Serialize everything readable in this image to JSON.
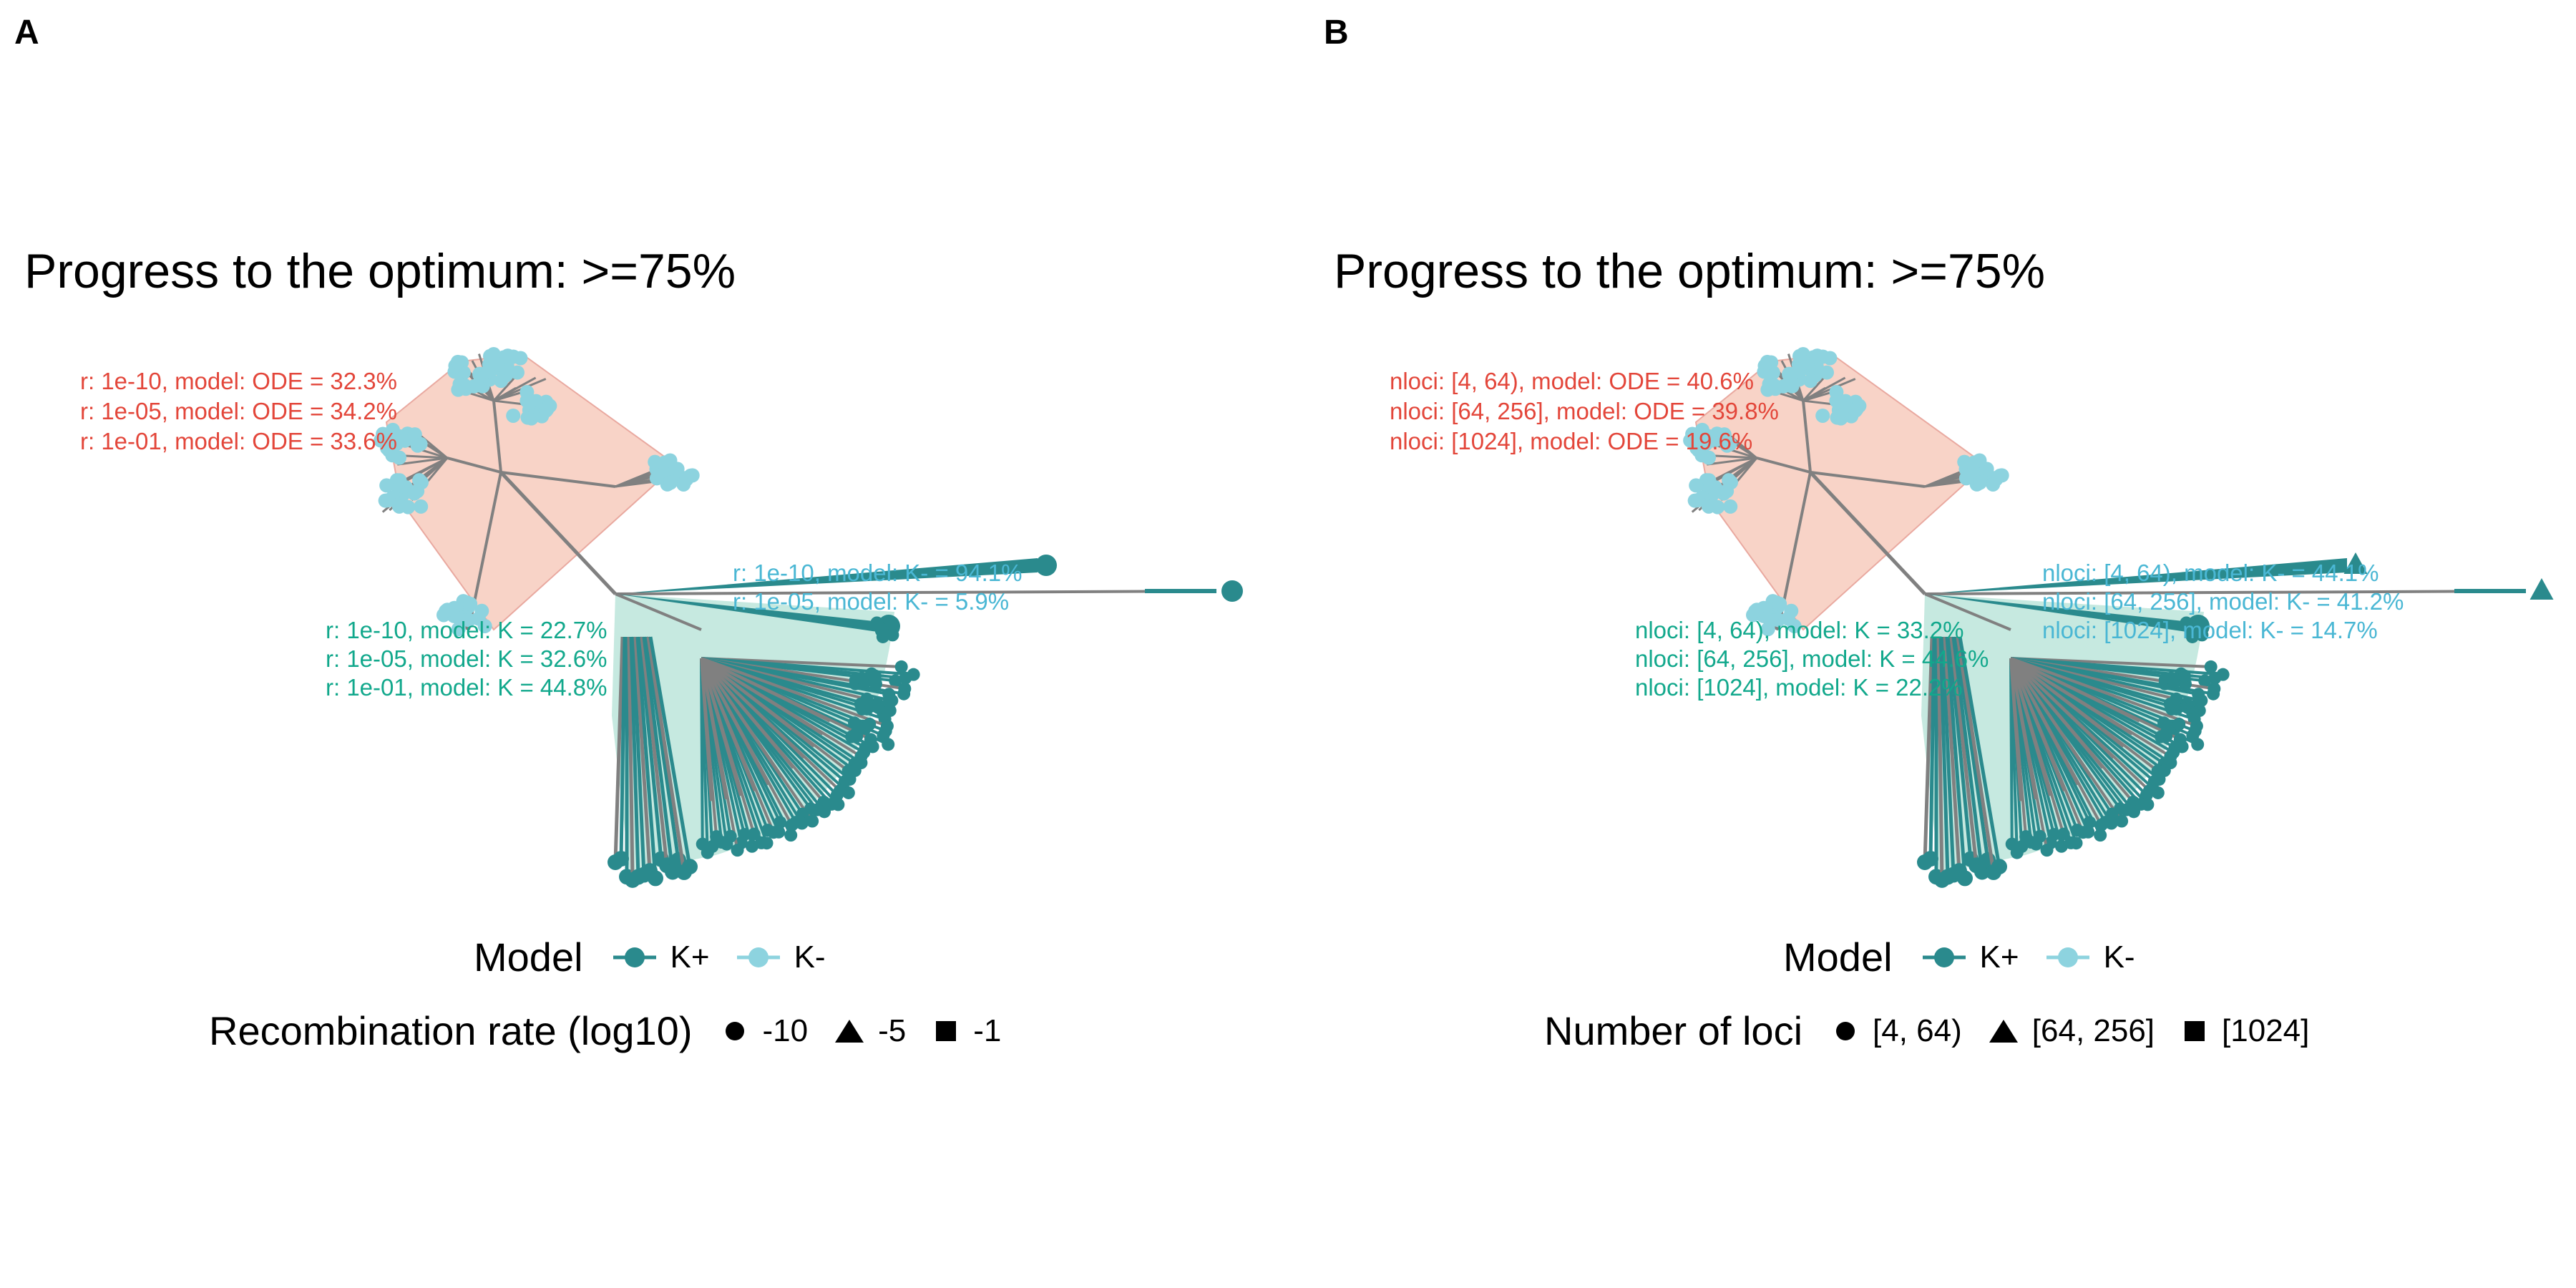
{
  "colors": {
    "k_plus": "#2a8a8d",
    "k_minus": "#8dd3df",
    "hull_ode": "#f8d3c7",
    "hull_k": "#c6e9e0",
    "branch": "#808080",
    "label_ode": "#e3463a",
    "label_kplus": "#12a88c",
    "label_kminus": "#4ab7d4"
  },
  "panels": [
    {
      "letter": "A",
      "title": "Progress to the optimum: >=75%",
      "ode_labels": [
        "r: 1e-10, model: ODE = 32.3%",
        "r: 1e-05, model: ODE = 34.2%",
        "r: 1e-01, model: ODE = 33.6%"
      ],
      "kminus_labels": [
        "r: 1e-10, model: K- = 94.1%",
        "r: 1e-05, model: K- = 5.9%"
      ],
      "kplus_labels": [
        "r: 1e-10, model: K = 22.7%",
        "r: 1e-05, model: K = 32.6%",
        "r: 1e-01, model: K = 44.8%"
      ],
      "legend_model": {
        "title": "Model",
        "items": [
          "K+",
          "K-"
        ]
      },
      "legend_shape": {
        "title": "Recombination rate (log10)",
        "items": [
          "-10",
          "-5",
          "-1"
        ],
        "shapes": [
          "circle",
          "triangle",
          "square"
        ]
      },
      "outlier_shape": "circle"
    },
    {
      "letter": "B",
      "title": "Progress to the optimum: >=75%",
      "ode_labels": [
        "nloci: [4, 64), model: ODE = 40.6%",
        "nloci: [64, 256], model: ODE = 39.8%",
        "nloci: [1024], model: ODE = 19.6%"
      ],
      "kminus_labels": [
        "nloci: [4, 64), model: K- = 44.1%",
        "nloci: [64, 256], model: K- = 41.2%",
        "nloci: [1024], model: K- = 14.7%"
      ],
      "kplus_labels": [
        "nloci: [4, 64), model: K = 33.2%",
        "nloci: [64, 256], model: K = 44.6%",
        "nloci: [1024], model: K = 22.2%"
      ],
      "legend_model": {
        "title": "Model",
        "items": [
          "K+",
          "K-"
        ]
      },
      "legend_shape": {
        "title": "Number of loci",
        "items": [
          "[4, 64)",
          "[64, 256]",
          "[1024]"
        ],
        "shapes": [
          "circle",
          "triangle",
          "square"
        ]
      },
      "outlier_shape": "triangle"
    }
  ]
}
